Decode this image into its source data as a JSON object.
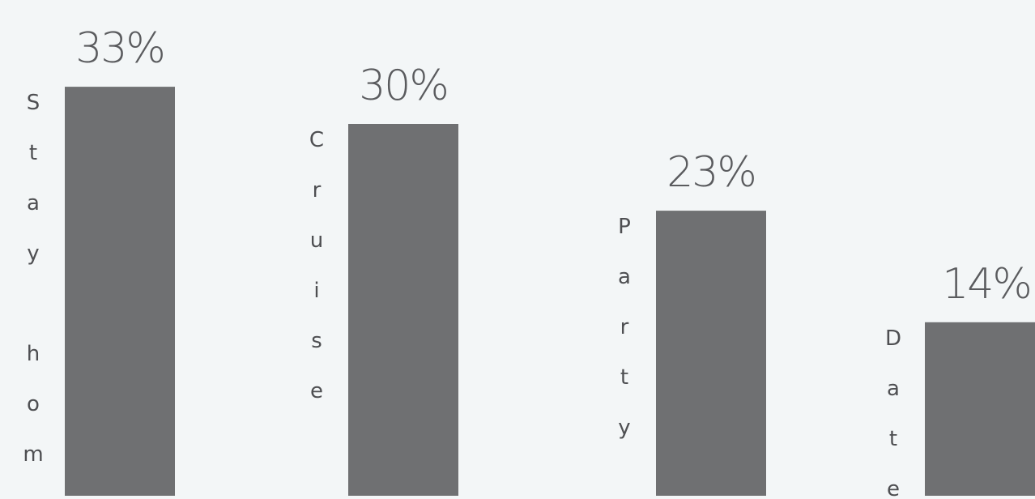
{
  "chart_data": {
    "type": "bar",
    "categories": [
      "Stay home",
      "Cruise",
      "Party",
      "Date"
    ],
    "values": [
      33,
      30,
      23,
      14
    ],
    "data_labels": [
      "33%",
      "30%",
      "23%",
      "14%"
    ],
    "title": "",
    "xlabel": "",
    "ylabel": "",
    "ylim": [
      0,
      40
    ],
    "grid": false,
    "legend": "none",
    "category_label_orientation": "vertical-stacked-letters"
  },
  "colors": {
    "background": "#f3f6f7",
    "bar": "#6f7072",
    "label_text": "#5a5b5e",
    "category_text": "#4e4f52"
  }
}
